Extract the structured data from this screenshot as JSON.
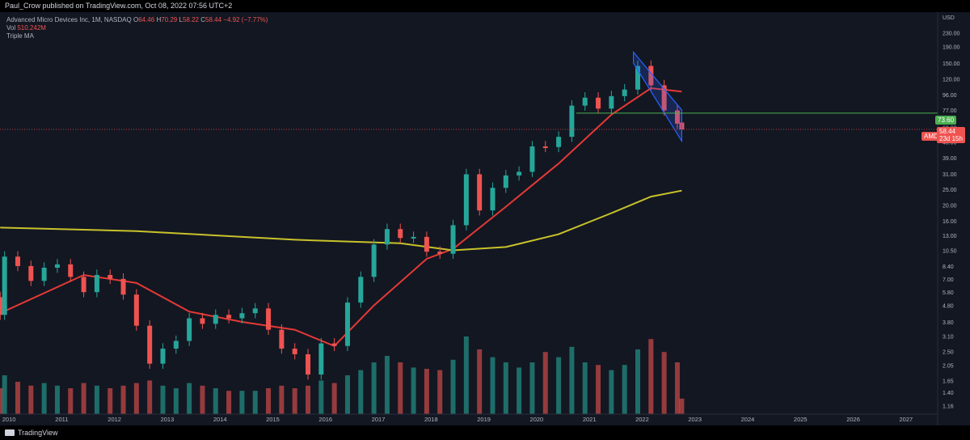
{
  "header": {
    "published": "Paul_Crow published on TradingView.com, Oct 08, 2022 07:56 UTC+2"
  },
  "legend": {
    "symbol": "Advanced Micro Devices Inc, 1M, NASDAQ",
    "ohlc": [
      {
        "label": "O",
        "value": "64.46"
      },
      {
        "label": "H",
        "value": "70.29"
      },
      {
        "label": "L",
        "value": "58.22"
      },
      {
        "label": "C",
        "value": "58.44"
      }
    ],
    "change": "−4.92 (−7.77%)",
    "volume_label": "Vol",
    "volume_value": "510.242M",
    "indicator": "Triple MA"
  },
  "price_tags": {
    "level_value": "73.60",
    "ticker": "AMD",
    "last_price": "58.44",
    "countdown": "23d 15h"
  },
  "footer": {
    "brand": "TradingView"
  },
  "colors": {
    "up": "#26a69a",
    "down": "#ef5350",
    "ma_short": "#e53935",
    "ma_long": "#c9c22b",
    "channel": "#2962ff",
    "level": "#4caf50",
    "background": "#131722"
  },
  "chart_data": {
    "type": "candlestick",
    "title": "",
    "y_axis": {
      "unit": "USD",
      "scale": "log",
      "ticks": [
        230,
        190,
        150,
        120,
        96,
        77,
        60,
        49,
        39,
        31,
        25,
        20,
        16,
        13,
        10.5,
        8.4,
        7,
        5.8,
        4.8,
        3.8,
        3.1,
        2.5,
        2.05,
        1.65,
        1.4,
        1.16
      ]
    },
    "x_axis": {
      "ticks": [
        "2010",
        "2011",
        "2012",
        "2013",
        "2014",
        "2015",
        "2016",
        "2017",
        "2018",
        "2019",
        "2020",
        "2021",
        "2022",
        "2023",
        "2024",
        "2025",
        "2026",
        "2027"
      ]
    },
    "series": [
      {
        "type": "candles",
        "points": [
          {
            "t": "2009-11",
            "o": 5.4,
            "c": 4.2,
            "v": 20
          },
          {
            "t": "2009-12",
            "o": 4.2,
            "c": 9.6,
            "v": 30
          },
          {
            "t": "2010-03",
            "o": 9.6,
            "c": 8.4,
            "v": 25
          },
          {
            "t": "2010-06",
            "o": 8.4,
            "c": 6.8,
            "v": 22
          },
          {
            "t": "2010-09",
            "o": 6.8,
            "c": 8.2,
            "v": 24
          },
          {
            "t": "2010-12",
            "o": 8.2,
            "c": 8.6,
            "v": 22
          },
          {
            "t": "2011-03",
            "o": 8.6,
            "c": 7.2,
            "v": 20
          },
          {
            "t": "2011-06",
            "o": 7.2,
            "c": 5.8,
            "v": 24
          },
          {
            "t": "2011-09",
            "o": 5.8,
            "c": 7.4,
            "v": 22
          },
          {
            "t": "2011-12",
            "o": 7.4,
            "c": 7.0,
            "v": 20
          },
          {
            "t": "2012-03",
            "o": 7.0,
            "c": 5.6,
            "v": 22
          },
          {
            "t": "2012-06",
            "o": 5.6,
            "c": 3.6,
            "v": 24
          },
          {
            "t": "2012-09",
            "o": 3.6,
            "c": 2.1,
            "v": 26
          },
          {
            "t": "2012-12",
            "o": 2.1,
            "c": 2.6,
            "v": 22
          },
          {
            "t": "2013-03",
            "o": 2.6,
            "c": 2.9,
            "v": 20
          },
          {
            "t": "2013-06",
            "o": 2.9,
            "c": 4.0,
            "v": 24
          },
          {
            "t": "2013-09",
            "o": 4.0,
            "c": 3.7,
            "v": 22
          },
          {
            "t": "2013-12",
            "o": 3.7,
            "c": 4.2,
            "v": 20
          },
          {
            "t": "2014-03",
            "o": 4.2,
            "c": 4.0,
            "v": 18
          },
          {
            "t": "2014-06",
            "o": 4.0,
            "c": 4.3,
            "v": 18
          },
          {
            "t": "2014-09",
            "o": 4.3,
            "c": 4.6,
            "v": 18
          },
          {
            "t": "2014-12",
            "o": 4.6,
            "c": 3.4,
            "v": 20
          },
          {
            "t": "2015-03",
            "o": 3.4,
            "c": 2.6,
            "v": 22
          },
          {
            "t": "2015-06",
            "o": 2.6,
            "c": 2.4,
            "v": 20
          },
          {
            "t": "2015-09",
            "o": 2.4,
            "c": 1.8,
            "v": 22
          },
          {
            "t": "2015-12",
            "o": 1.8,
            "c": 2.8,
            "v": 26
          },
          {
            "t": "2016-03",
            "o": 2.8,
            "c": 2.7,
            "v": 24
          },
          {
            "t": "2016-06",
            "o": 2.7,
            "c": 5.0,
            "v": 30
          },
          {
            "t": "2016-09",
            "o": 5.0,
            "c": 7.2,
            "v": 34
          },
          {
            "t": "2016-12",
            "o": 7.2,
            "c": 11.4,
            "v": 40
          },
          {
            "t": "2017-03",
            "o": 11.4,
            "c": 14.2,
            "v": 45
          },
          {
            "t": "2017-06",
            "o": 14.2,
            "c": 12.5,
            "v": 40
          },
          {
            "t": "2017-09",
            "o": 12.5,
            "c": 12.7,
            "v": 36
          },
          {
            "t": "2017-12",
            "o": 12.7,
            "c": 10.3,
            "v": 35
          },
          {
            "t": "2018-03",
            "o": 10.3,
            "c": 10.0,
            "v": 34
          },
          {
            "t": "2018-06",
            "o": 10.0,
            "c": 15.0,
            "v": 42
          },
          {
            "t": "2018-09",
            "o": 15.0,
            "c": 30.9,
            "v": 60
          },
          {
            "t": "2018-12",
            "o": 30.9,
            "c": 18.5,
            "v": 50
          },
          {
            "t": "2019-03",
            "o": 18.5,
            "c": 25.5,
            "v": 44
          },
          {
            "t": "2019-06",
            "o": 25.5,
            "c": 30.4,
            "v": 40
          },
          {
            "t": "2019-09",
            "o": 30.4,
            "c": 32.0,
            "v": 36
          },
          {
            "t": "2019-12",
            "o": 32.0,
            "c": 45.9,
            "v": 40
          },
          {
            "t": "2020-03",
            "o": 45.9,
            "c": 45.5,
            "v": 48
          },
          {
            "t": "2020-06",
            "o": 45.5,
            "c": 52.6,
            "v": 44
          },
          {
            "t": "2020-09",
            "o": 52.6,
            "c": 81.9,
            "v": 52
          },
          {
            "t": "2020-12",
            "o": 81.9,
            "c": 91.7,
            "v": 40
          },
          {
            "t": "2021-03",
            "o": 91.7,
            "c": 78.5,
            "v": 38
          },
          {
            "t": "2021-06",
            "o": 78.5,
            "c": 93.7,
            "v": 34
          },
          {
            "t": "2021-09",
            "o": 93.7,
            "c": 102.9,
            "v": 38
          },
          {
            "t": "2021-12",
            "o": 102.9,
            "c": 143.9,
            "v": 50
          },
          {
            "t": "2022-03",
            "o": 143.9,
            "c": 109.3,
            "v": 58
          },
          {
            "t": "2022-06",
            "o": 109.3,
            "c": 76.5,
            "v": 48
          },
          {
            "t": "2022-09",
            "o": 76.5,
            "c": 63.4,
            "v": 40
          },
          {
            "t": "2022-10",
            "o": 64.46,
            "c": 58.44,
            "v": 12
          }
        ]
      }
    ],
    "moving_averages": [
      {
        "color": "red",
        "points": [
          {
            "t": "2009-11",
            "y": 4.3
          },
          {
            "t": "2011-06",
            "y": 7.4
          },
          {
            "t": "2012-06",
            "y": 6.6
          },
          {
            "t": "2013-06",
            "y": 4.4
          },
          {
            "t": "2014-06",
            "y": 3.8
          },
          {
            "t": "2015-06",
            "y": 3.4
          },
          {
            "t": "2016-03",
            "y": 2.7
          },
          {
            "t": "2016-12",
            "y": 4.8
          },
          {
            "t": "2017-12",
            "y": 9.3
          },
          {
            "t": "2018-06",
            "y": 10.7
          },
          {
            "t": "2019-06",
            "y": 19.5
          },
          {
            "t": "2020-06",
            "y": 36
          },
          {
            "t": "2021-06",
            "y": 72
          },
          {
            "t": "2022-03",
            "y": 105
          },
          {
            "t": "2022-10",
            "y": 100
          }
        ]
      },
      {
        "color": "yellow",
        "points": [
          {
            "t": "2009-11",
            "y": 14.5
          },
          {
            "t": "2012-06",
            "y": 13.8
          },
          {
            "t": "2015-06",
            "y": 12.2
          },
          {
            "t": "2017-06",
            "y": 11.6
          },
          {
            "t": "2018-06",
            "y": 10.5
          },
          {
            "t": "2019-06",
            "y": 11.0
          },
          {
            "t": "2020-06",
            "y": 13.2
          },
          {
            "t": "2021-06",
            "y": 17.8
          },
          {
            "t": "2022-03",
            "y": 22.5
          },
          {
            "t": "2022-10",
            "y": 24.5
          }
        ]
      }
    ],
    "horizontal_level": 73.6,
    "channel": {
      "upper": [
        {
          "t": "2021-11",
          "y": 175
        },
        {
          "t": "2022-10",
          "y": 77
        }
      ],
      "lower": [
        {
          "t": "2021-11",
          "y": 150
        },
        {
          "t": "2022-10",
          "y": 49.5
        }
      ]
    },
    "grid": false,
    "legend_position": "top-left"
  }
}
